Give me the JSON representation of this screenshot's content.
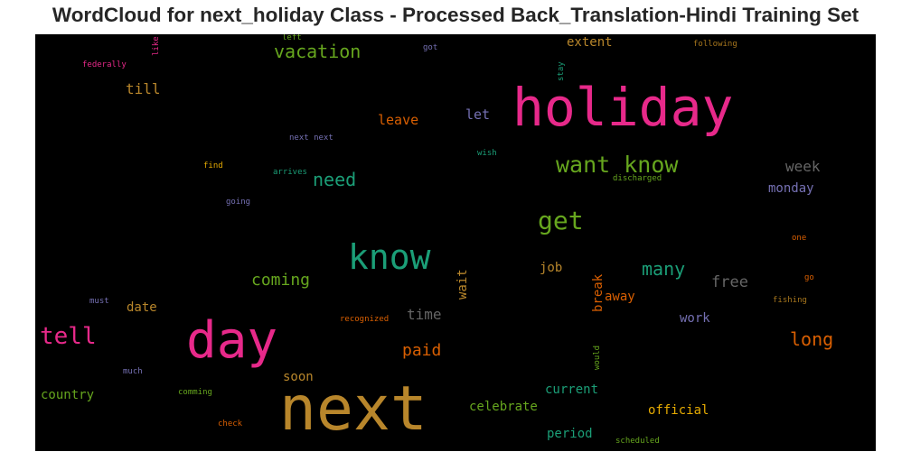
{
  "title": "WordCloud for next_holiday Class - Processed Back_Translation-Hindi Training Set",
  "colors": {
    "background": "#000000",
    "magenta": "#e7298a",
    "gold": "#b8862b",
    "green": "#66a61e",
    "teal": "#1b9e77",
    "orange": "#d95f02",
    "purple": "#7570b3",
    "gray": "#666666"
  },
  "words": [
    {
      "text": "holiday",
      "color": "#e7298a"
    },
    {
      "text": "next",
      "color": "#b8862b"
    },
    {
      "text": "day",
      "color": "#e7298a"
    },
    {
      "text": "know",
      "color": "#1b9e77"
    },
    {
      "text": "want know",
      "color": "#66a61e"
    },
    {
      "text": "get",
      "color": "#66a61e"
    },
    {
      "text": "tell",
      "color": "#e7298a"
    },
    {
      "text": "vacation",
      "color": "#66a61e"
    },
    {
      "text": "need",
      "color": "#1b9e77"
    },
    {
      "text": "many",
      "color": "#1b9e77"
    },
    {
      "text": "long",
      "color": "#d95f02"
    },
    {
      "text": "coming",
      "color": "#66a61e"
    },
    {
      "text": "free",
      "color": "#666666"
    },
    {
      "text": "week",
      "color": "#666666"
    },
    {
      "text": "paid",
      "color": "#d95f02"
    },
    {
      "text": "time",
      "color": "#666666"
    },
    {
      "text": "till",
      "color": "#b8862b"
    },
    {
      "text": "leave",
      "color": "#d95f02"
    },
    {
      "text": "let",
      "color": "#7570b3"
    },
    {
      "text": "extent",
      "color": "#b8862b"
    },
    {
      "text": "monday",
      "color": "#7570b3"
    },
    {
      "text": "job",
      "color": "#b8862b"
    },
    {
      "text": "away",
      "color": "#d95f02"
    },
    {
      "text": "work",
      "color": "#7570b3"
    },
    {
      "text": "date",
      "color": "#b8862b"
    },
    {
      "text": "soon",
      "color": "#b8862b"
    },
    {
      "text": "country",
      "color": "#66a61e"
    },
    {
      "text": "celebrate",
      "color": "#66a61e"
    },
    {
      "text": "current",
      "color": "#1b9e77"
    },
    {
      "text": "official",
      "color": "#e6ab02"
    },
    {
      "text": "period",
      "color": "#1b9e77"
    },
    {
      "text": "wait",
      "color": "#b8862b"
    },
    {
      "text": "break",
      "color": "#d95f02"
    },
    {
      "text": "left",
      "color": "#66a61e"
    },
    {
      "text": "like",
      "color": "#e7298a"
    },
    {
      "text": "got",
      "color": "#7570b3"
    },
    {
      "text": "stay",
      "color": "#1b9e77"
    },
    {
      "text": "following",
      "color": "#a6761d"
    },
    {
      "text": "federally",
      "color": "#e7298a"
    },
    {
      "text": "next next",
      "color": "#7570b3"
    },
    {
      "text": "wish",
      "color": "#1b9e77"
    },
    {
      "text": "find",
      "color": "#e6ab02"
    },
    {
      "text": "arrives",
      "color": "#1b9e77"
    },
    {
      "text": "discharged",
      "color": "#66a61e"
    },
    {
      "text": "going",
      "color": "#7570b3"
    },
    {
      "text": "one",
      "color": "#d95f02"
    },
    {
      "text": "go",
      "color": "#d95f02"
    },
    {
      "text": "must",
      "color": "#7570b3"
    },
    {
      "text": "fishing",
      "color": "#a6761d"
    },
    {
      "text": "recognized",
      "color": "#d95f02"
    },
    {
      "text": "would",
      "color": "#66a61e"
    },
    {
      "text": "much",
      "color": "#7570b3"
    },
    {
      "text": "comming",
      "color": "#66a61e"
    },
    {
      "text": "check",
      "color": "#d95f02"
    },
    {
      "text": "scheduled",
      "color": "#66a61e"
    }
  ]
}
